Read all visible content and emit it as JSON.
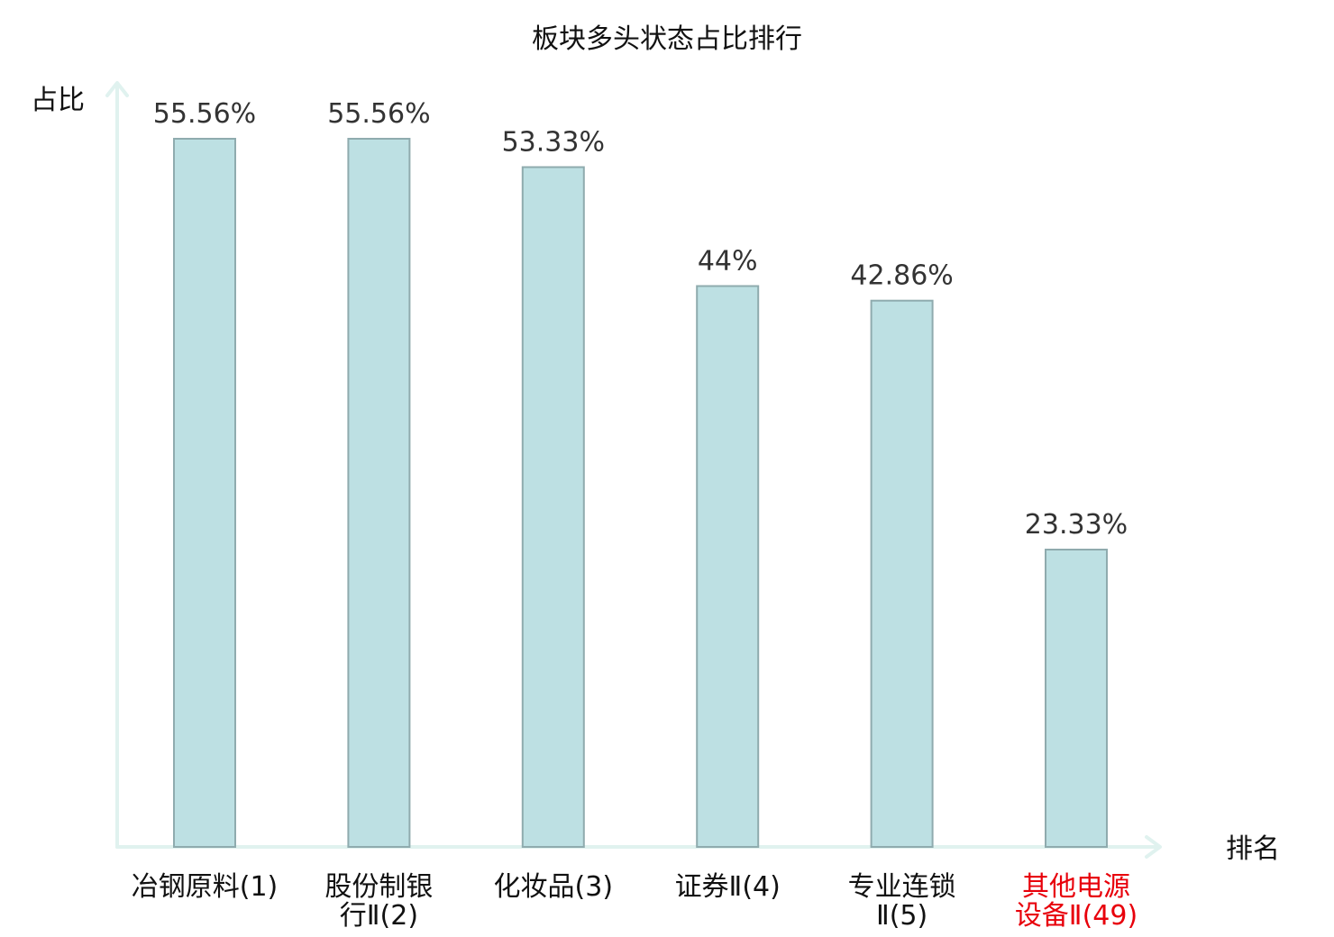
{
  "chart_data": {
    "type": "bar",
    "title": "板块多头状态占比排行",
    "ylabel": "占比",
    "xlabel": "排名",
    "ylim": [
      0,
      60
    ],
    "grid": false,
    "categories": [
      [
        "冶钢原料(1)"
      ],
      [
        "股份制银",
        "行Ⅱ(2)"
      ],
      [
        "化妆品(3)"
      ],
      [
        "证券Ⅱ(4)"
      ],
      [
        "专业连锁",
        "Ⅱ(5)"
      ],
      [
        "其他电源",
        "设备Ⅱ(49)"
      ]
    ],
    "values": [
      55.56,
      55.56,
      53.33,
      44,
      42.86,
      23.33
    ],
    "value_labels": [
      "55.56%",
      "55.56%",
      "53.33%",
      "44%",
      "42.86%",
      "23.33%"
    ],
    "highlight_index": 5,
    "colors": {
      "bar_fill": "#bde0e3",
      "bar_stroke": "#8fabae",
      "axis": "#e0f2ef",
      "label_text": "#111111",
      "highlight_text": "#e8000b",
      "value_text": "#333333"
    }
  }
}
